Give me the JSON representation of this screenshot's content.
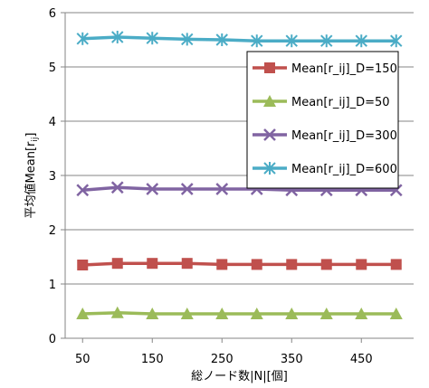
{
  "chart_data": {
    "type": "line",
    "title": "",
    "xlabel": "総ノード数|N|[個]",
    "ylabel": "平均値Mean[r",
    "ylabel_sub": "ij",
    "ylabel_end": "]",
    "x": [
      50,
      100,
      150,
      200,
      250,
      300,
      350,
      400,
      450,
      500
    ],
    "xticks": [
      "50",
      "150",
      "250",
      "350",
      "450"
    ],
    "yticks": [
      "0",
      "1",
      "2",
      "3",
      "4",
      "5",
      "6"
    ],
    "xlim": [
      25,
      525
    ],
    "ylim": [
      0,
      6
    ],
    "grid": true,
    "legend": "upper-right",
    "series": [
      {
        "name": "Mean[r_ij]_D=150",
        "color": "#c0504d",
        "marker": "square",
        "values": [
          1.35,
          1.38,
          1.38,
          1.38,
          1.36,
          1.36,
          1.36,
          1.36,
          1.36,
          1.36
        ]
      },
      {
        "name": "Mean[r_ij]_D=50",
        "color": "#9bbb59",
        "marker": "triangle",
        "values": [
          0.45,
          0.47,
          0.45,
          0.45,
          0.45,
          0.45,
          0.45,
          0.45,
          0.45,
          0.45
        ]
      },
      {
        "name": "Mean[r_ij]_D=300",
        "color": "#8064a2",
        "marker": "x",
        "values": [
          2.73,
          2.78,
          2.75,
          2.75,
          2.75,
          2.75,
          2.73,
          2.73,
          2.73,
          2.73
        ]
      },
      {
        "name": "Mean[r_ij]_D=600",
        "color": "#4bacc6",
        "marker": "star",
        "values": [
          5.52,
          5.55,
          5.53,
          5.51,
          5.5,
          5.48,
          5.48,
          5.48,
          5.48,
          5.48
        ]
      }
    ]
  }
}
